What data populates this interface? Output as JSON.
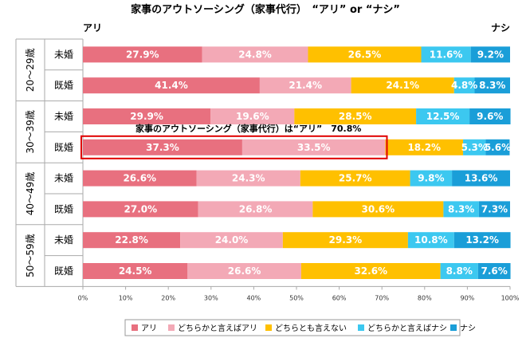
{
  "chart_data": {
    "type": "bar",
    "orientation": "horizontal",
    "stacked": true,
    "title": "家事のアウトソーシング（家事代行）　“アリ” or “ナシ”",
    "left_label": "アリ",
    "right_label": "ナシ",
    "age_groups": [
      "20～29歳",
      "30～39歳",
      "40～49歳",
      "50～59歳"
    ],
    "categories": [
      "未婚",
      "既婚",
      "未婚",
      "既婚",
      "未婚",
      "既婚",
      "未婚",
      "既婚"
    ],
    "series": [
      {
        "name": "アリ",
        "color": "#e8707f",
        "values": [
          27.9,
          41.4,
          29.9,
          37.3,
          26.6,
          27.0,
          22.8,
          24.5
        ]
      },
      {
        "name": "どちらかと言えばアリ",
        "color": "#f3a9b6",
        "values": [
          24.8,
          21.4,
          19.6,
          33.5,
          24.3,
          26.8,
          24.0,
          26.6
        ]
      },
      {
        "name": "どちらとも言えない",
        "color": "#ffc000",
        "values": [
          26.5,
          24.1,
          28.5,
          18.2,
          25.7,
          30.6,
          29.3,
          32.6
        ]
      },
      {
        "name": "どちらかと言えばナシ",
        "color": "#3cc8f0",
        "values": [
          11.6,
          4.8,
          12.5,
          5.3,
          9.8,
          8.3,
          10.8,
          8.8
        ]
      },
      {
        "name": "ナシ",
        "color": "#1a9ed8",
        "values": [
          9.2,
          8.3,
          9.6,
          5.6,
          13.6,
          7.3,
          13.2,
          7.6
        ]
      }
    ],
    "value_labels": [
      [
        "27.9%",
        "24.8%",
        "26.5%",
        "11.6%",
        "9.2%"
      ],
      [
        "41.4%",
        "21.4%",
        "24.1%",
        "4.8%",
        "8.3%"
      ],
      [
        "29.9%",
        "19.6%",
        "28.5%",
        "12.5%",
        "9.6%"
      ],
      [
        "37.3%",
        "33.5%",
        "18.2%",
        "5.3%",
        "5.6%"
      ],
      [
        "26.6%",
        "24.3%",
        "25.7%",
        "9.8%",
        "13.6%"
      ],
      [
        "27.0%",
        "26.8%",
        "30.6%",
        "8.3%",
        "7.3%"
      ],
      [
        "22.8%",
        "24.0%",
        "29.3%",
        "10.8%",
        "13.2%"
      ],
      [
        "24.5%",
        "26.6%",
        "32.6%",
        "8.8%",
        "7.6%"
      ]
    ],
    "x_ticks": [
      "0%",
      "10%",
      "20%",
      "30%",
      "40%",
      "50%",
      "60%",
      "70%",
      "80%",
      "90%",
      "100%"
    ],
    "xlim": [
      0,
      100
    ],
    "annotation": {
      "text": "家事のアウトソーシング（家事代行）は“アリ”　70.8%",
      "row": 3,
      "value": 70.8,
      "color": "#e00000"
    },
    "legend_position": "bottom"
  }
}
